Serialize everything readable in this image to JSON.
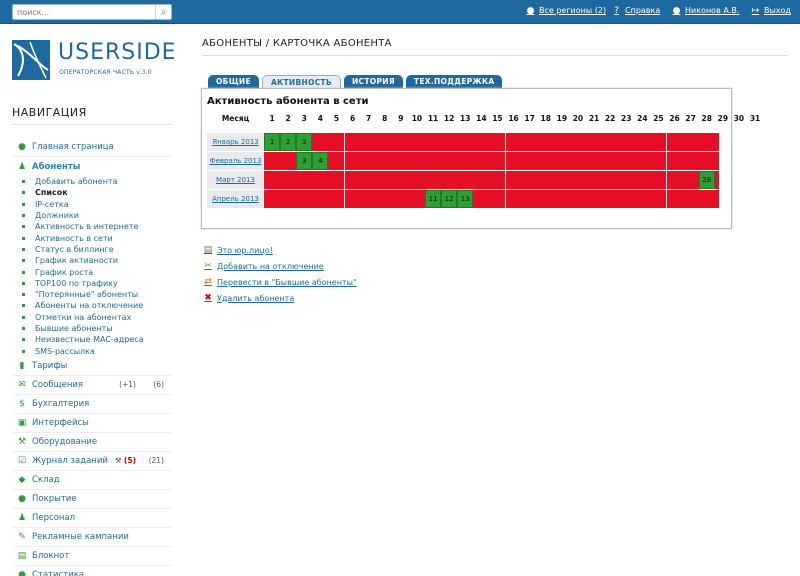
{
  "topbar": {
    "search_placeholder": "поиск...",
    "regions_label": "Все регионы (2)",
    "help_label": "Справка",
    "user_label": "Никонов А.В.",
    "exit_label": "Выход"
  },
  "logo": {
    "text": "USERSIDE",
    "subtitle": "ОПЕРАТОРСКАЯ ЧАСТЬ v.3.0"
  },
  "nav": {
    "title": "НАВИГАЦИЯ",
    "items": [
      {
        "label": "Главная страница",
        "icon": "map-pin-icon"
      },
      {
        "label": "Абоненты",
        "icon": "user-icon",
        "active": true
      },
      {
        "label": "Тарифы",
        "icon": "bar-chart-icon"
      },
      {
        "label": "Сообщения",
        "icon": "envelope-icon",
        "count_new": "(+1)",
        "count": "(6)"
      },
      {
        "label": "Бухгалтерия",
        "icon": "dollar-icon"
      },
      {
        "label": "Интерфейсы",
        "icon": "interface-icon"
      },
      {
        "label": "Оборудование",
        "icon": "tools-icon"
      },
      {
        "label": "Журнал заданий",
        "icon": "tasks-icon",
        "count_new": "(5)",
        "count": "(21)"
      },
      {
        "label": "Склад",
        "icon": "box-icon"
      },
      {
        "label": "Покрытие",
        "icon": "globe-icon"
      },
      {
        "label": "Персонал",
        "icon": "people-icon"
      },
      {
        "label": "Рекламные кампании",
        "icon": "megaphone-icon"
      },
      {
        "label": "Блокнот",
        "icon": "notepad-icon"
      },
      {
        "label": "Статистика",
        "icon": "stats-icon"
      }
    ],
    "subitems": [
      "Добавить абонента",
      "Список",
      "IP-сетка",
      "Должники",
      "Активность в интернете",
      "Активность в сети",
      "Статус в биллинге",
      "График активности",
      "График роста",
      "TOP100 по трафику",
      "\"Потерянные\" абоненты",
      "Абоненты на отключение",
      "Отметки на абонентах",
      "Бывшие абоненты",
      "Неизвестные MAC-адреса",
      "SMS-рассылка"
    ],
    "current_subitem": "Список"
  },
  "main": {
    "page_title": "АБОНЕНТЫ / КАРТОЧКА АБОНЕНТА",
    "tabs": [
      {
        "label": "ОБЩИЕ"
      },
      {
        "label": "АКТИВНОСТЬ",
        "active": true
      },
      {
        "label": "ИСТОРИЯ"
      },
      {
        "label": "ТЕХ.ПОДДЕРЖКА"
      }
    ],
    "panel_title": "Активность абонента в сети",
    "month_header": "Месяц",
    "days": [
      "1",
      "2",
      "3",
      "4",
      "5",
      "6",
      "7",
      "8",
      "9",
      "10",
      "11",
      "12",
      "13",
      "14",
      "15",
      "16",
      "17",
      "18",
      "19",
      "20",
      "21",
      "22",
      "23",
      "24",
      "25",
      "26",
      "27",
      "28",
      "29",
      "30",
      "31"
    ],
    "months": [
      {
        "label": "Январь 2013",
        "active_days": [
          1,
          2,
          3
        ]
      },
      {
        "label": "Февраль 2013",
        "active_days": [
          3,
          4
        ]
      },
      {
        "label": "Март 2013",
        "active_days": [
          28
        ]
      },
      {
        "label": "Апрель 2013",
        "active_days": [
          11,
          12,
          13
        ]
      }
    ],
    "colors": {
      "active": "#2e9e36",
      "inactive": "#e60f25"
    },
    "actions": [
      {
        "label": "Это юр.лицо!",
        "icon": "document-icon"
      },
      {
        "label": "Добавить на отключение",
        "icon": "disconnect-icon"
      },
      {
        "label": "Перевести в \"Бывшие абоненты\"",
        "icon": "transfer-icon"
      },
      {
        "label": "Удалить абонента",
        "icon": "delete-icon"
      }
    ]
  }
}
